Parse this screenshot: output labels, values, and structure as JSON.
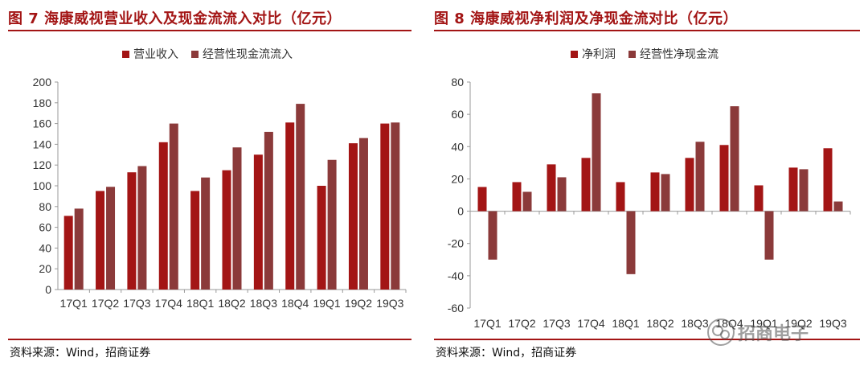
{
  "colors": {
    "accent": "#a31515",
    "series1": "#a31515",
    "series2": "#8b3a3a"
  },
  "left": {
    "title": "图 7  海康威视营业收入及现金流流入对比（亿元）",
    "source": "资料来源：Wind，招商证券"
  },
  "right": {
    "title": "图 8  海康威视净利润及净现金流对比（亿元）",
    "source": "资料来源：Wind，招商证券"
  },
  "watermark": {
    "text": "招商电子",
    "icon": "wechat-icon"
  },
  "chart_data": [
    {
      "type": "bar",
      "title": "图 7  海康威视营业收入及现金流流入对比（亿元）",
      "categories": [
        "17Q1",
        "17Q2",
        "17Q3",
        "17Q4",
        "18Q1",
        "18Q2",
        "18Q3",
        "18Q4",
        "19Q1",
        "19Q2",
        "19Q3"
      ],
      "series": [
        {
          "name": "营业收入",
          "color": "#a31515",
          "values": [
            71,
            95,
            113,
            142,
            95,
            115,
            130,
            161,
            100,
            141,
            160
          ]
        },
        {
          "name": "经营性现金流流入",
          "color": "#8b3a3a",
          "values": [
            78,
            99,
            119,
            160,
            108,
            137,
            152,
            179,
            125,
            146,
            161
          ]
        }
      ],
      "ylim": [
        0,
        200
      ],
      "yticks": [
        0,
        20,
        40,
        60,
        80,
        100,
        120,
        140,
        160,
        180,
        200
      ],
      "legend": "top-center",
      "grid": false
    },
    {
      "type": "bar",
      "title": "图 8  海康威视净利润及净现金流对比（亿元）",
      "categories": [
        "17Q1",
        "17Q2",
        "17Q3",
        "17Q4",
        "18Q1",
        "18Q2",
        "18Q3",
        "18Q4",
        "19Q1",
        "19Q2",
        "19Q3"
      ],
      "series": [
        {
          "name": "净利润",
          "color": "#a31515",
          "values": [
            15,
            18,
            29,
            33,
            18,
            24,
            33,
            41,
            16,
            27,
            39
          ]
        },
        {
          "name": "经营性净现金流",
          "color": "#8b3a3a",
          "values": [
            -30,
            12,
            21,
            73,
            -39,
            23,
            43,
            65,
            -30,
            26,
            6
          ]
        }
      ],
      "ylim": [
        -60,
        80
      ],
      "yticks": [
        -60,
        -40,
        -20,
        0,
        20,
        40,
        60,
        80
      ],
      "legend": "top-center",
      "grid": false
    }
  ]
}
